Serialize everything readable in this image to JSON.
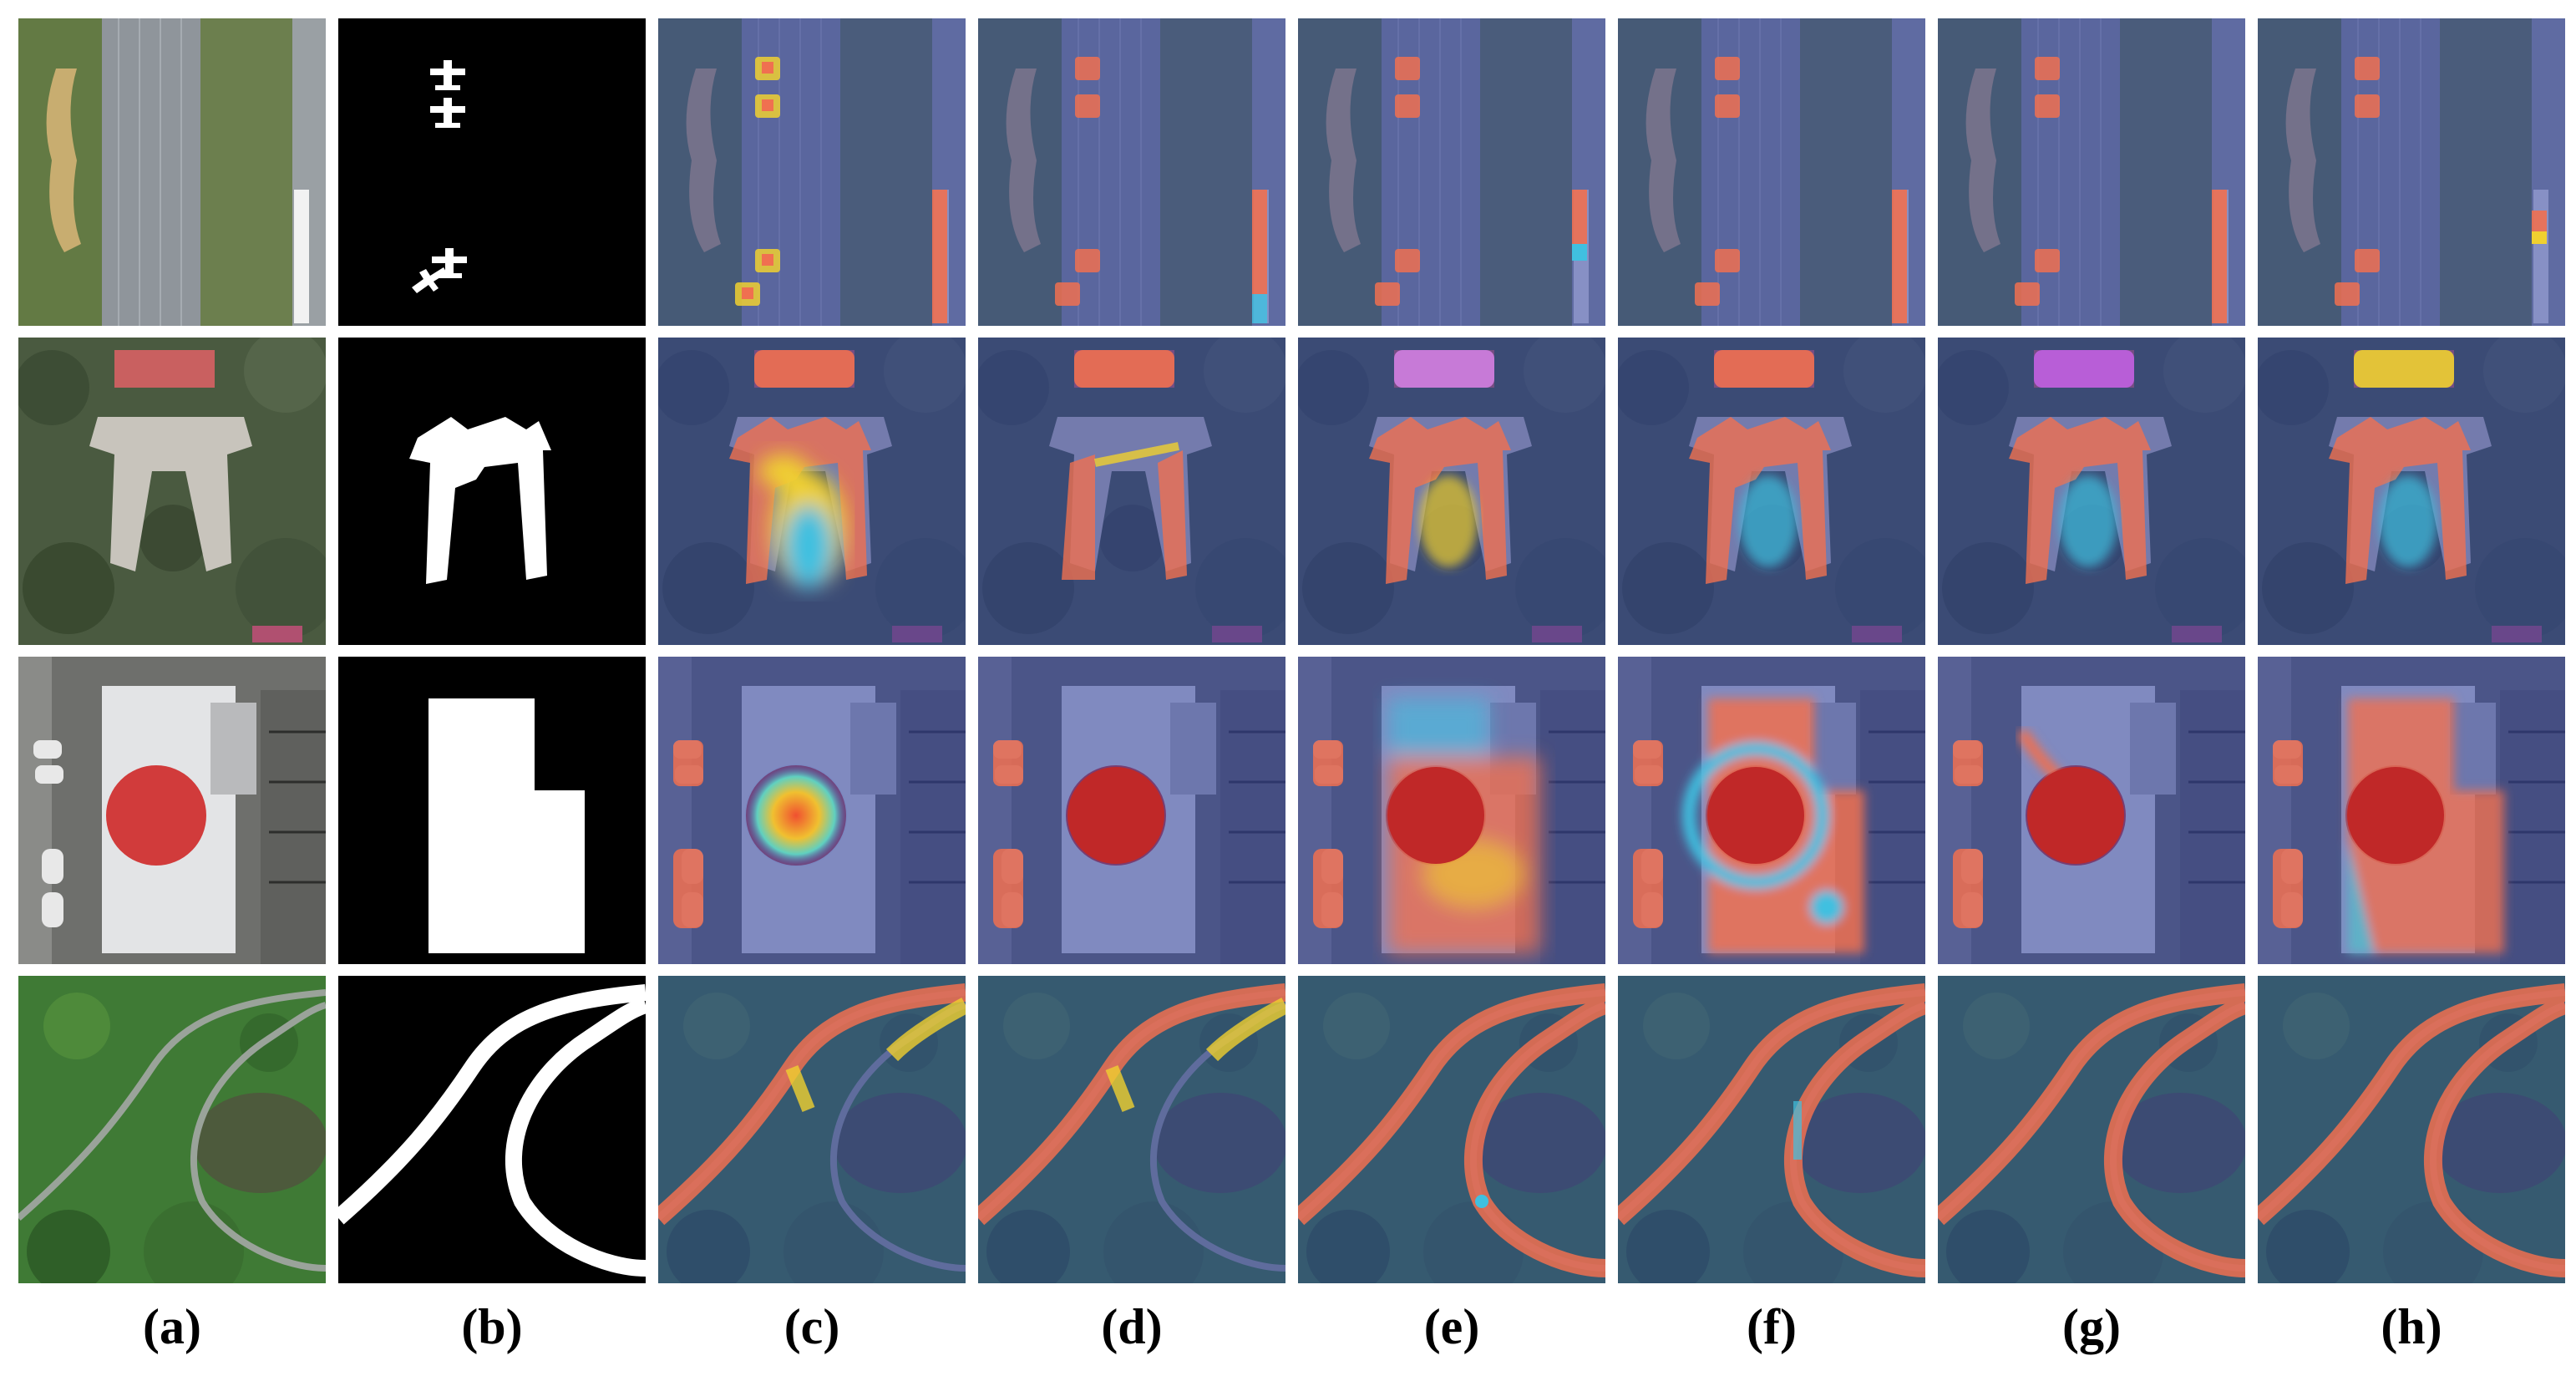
{
  "columns": [
    {
      "id": "a",
      "label": "(a)",
      "kind": "image"
    },
    {
      "id": "b",
      "label": "(b)",
      "kind": "mask"
    },
    {
      "id": "c",
      "label": "(c)",
      "kind": "heatmap"
    },
    {
      "id": "d",
      "label": "(d)",
      "kind": "heatmap"
    },
    {
      "id": "e",
      "label": "(e)",
      "kind": "heatmap"
    },
    {
      "id": "f",
      "label": "(f)",
      "kind": "heatmap"
    },
    {
      "id": "g",
      "label": "(g)",
      "kind": "heatmap"
    },
    {
      "id": "h",
      "label": "(h)",
      "kind": "heatmap"
    }
  ],
  "rows": [
    {
      "id": "airport"
    },
    {
      "id": "building"
    },
    {
      "id": "roof"
    },
    {
      "id": "road"
    }
  ],
  "colors": {
    "heat_high": "#f07050",
    "heat_mid": "#f0d030",
    "heat_low": "#40c0e0",
    "cold_tint": "#3040a0",
    "mask": "#ffffff",
    "mask_bg": "#000000"
  }
}
